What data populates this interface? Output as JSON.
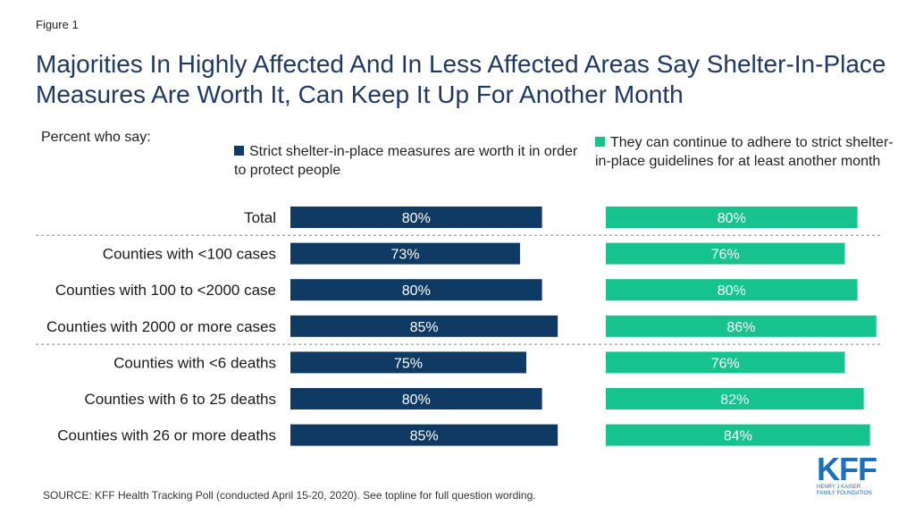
{
  "figure_label": "Figure 1",
  "title": "Majorities In Highly Affected And In Less Affected Areas Say Shelter-In-Place Measures Are Worth It, Can Keep It Up For Another Month",
  "subtitle": "Percent who say:",
  "source": "SOURCE: KFF Health Tracking Poll (conducted April 15-20, 2020). See topline for full question wording.",
  "logo": {
    "main": "KFF",
    "sub": "HENRY J KAISER\nFAMILY FOUNDATION"
  },
  "colors": {
    "series1": "#0f3a63",
    "series2": "#16c38f",
    "divider": "#888888"
  },
  "chart_data": {
    "type": "bar",
    "orientation": "horizontal",
    "categories": [
      "Total",
      "Counties with <100 cases",
      "Counties with 100 to <2000 case",
      "Counties with 2000 or more cases",
      "Counties with <6 deaths",
      "Counties with 6 to 25 deaths",
      "Counties with 26 or more deaths"
    ],
    "group_breaks_after": [
      0,
      3
    ],
    "series": [
      {
        "name": "Strict shelter-in-place measures are worth it in order to protect people",
        "values": [
          80,
          73,
          80,
          85,
          75,
          80,
          85
        ],
        "labels": [
          "80%",
          "73%",
          "80%",
          "85%",
          "75%",
          "80%",
          "85%"
        ],
        "color": "#0f3a63"
      },
      {
        "name": "They can continue to adhere to strict shelter-in-place guidelines for at least another month",
        "values": [
          80,
          76,
          80,
          86,
          76,
          82,
          84
        ],
        "labels": [
          "80%",
          "76%",
          "80%",
          "86%",
          "76%",
          "82%",
          "84%"
        ],
        "color": "#16c38f"
      }
    ],
    "xlim": [
      0,
      100
    ],
    "unit": "%",
    "grid": false,
    "legend_position": "top"
  }
}
